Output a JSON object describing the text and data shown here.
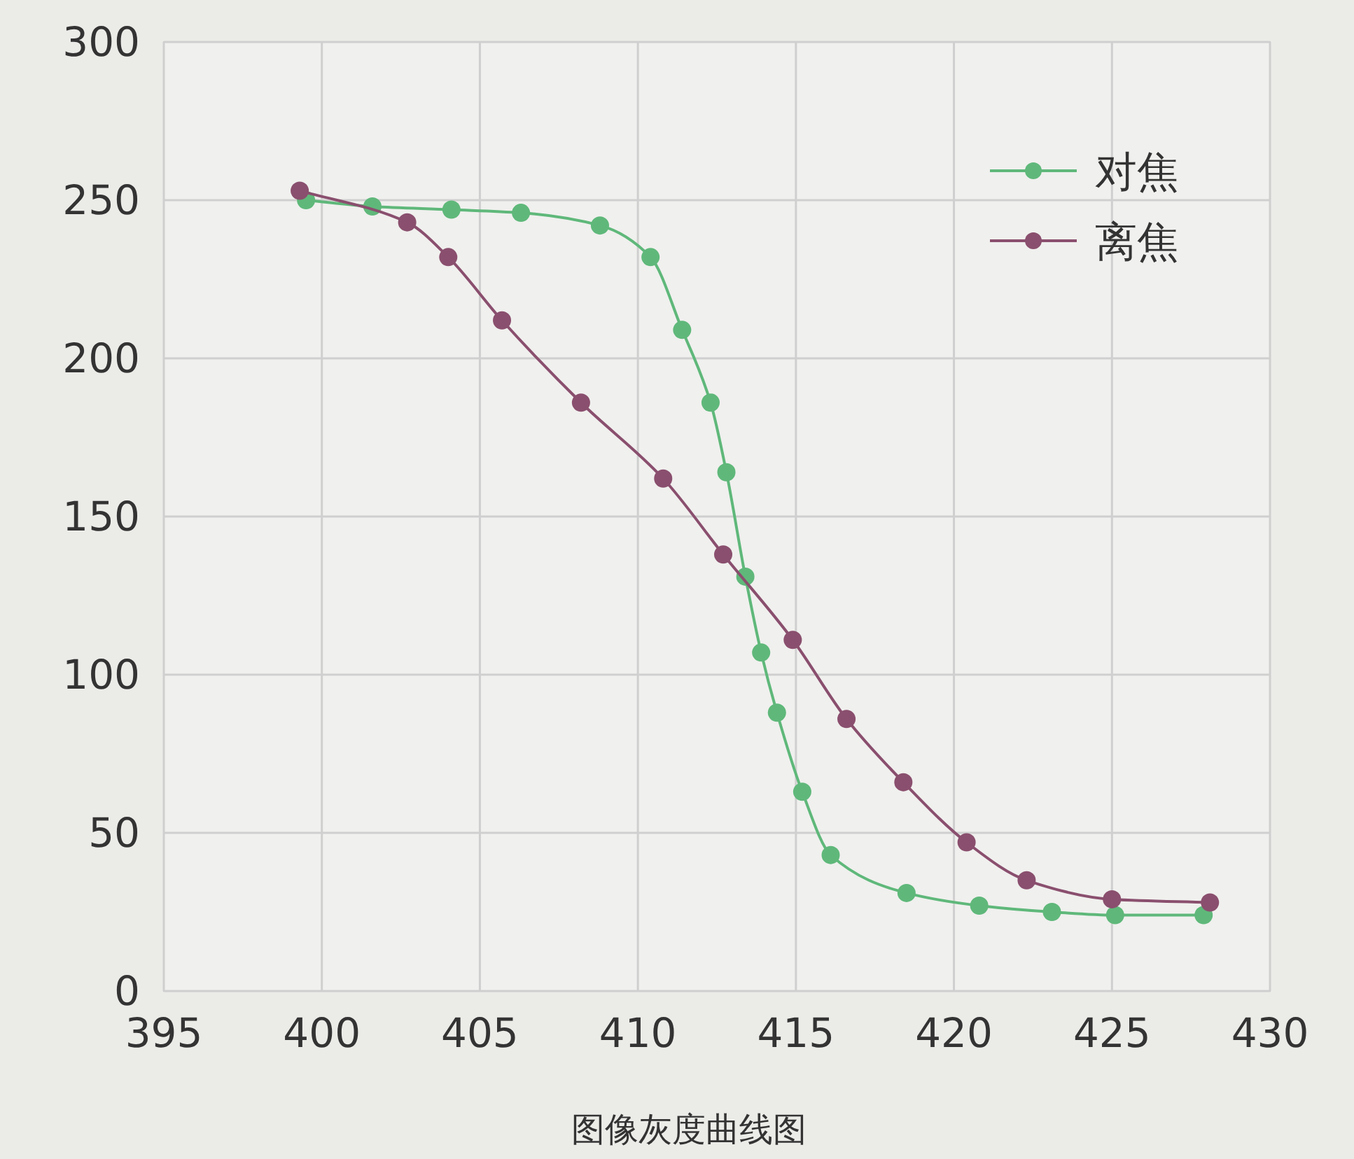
{
  "chart_data": {
    "type": "line",
    "annotations": [
      "图像灰度曲线图"
    ],
    "xlim": [
      395,
      430
    ],
    "xticks": [
      395,
      400,
      405,
      410,
      415,
      420,
      425,
      430
    ],
    "ylim": [
      0,
      300
    ],
    "yticks": [
      0,
      50,
      100,
      150,
      200,
      250,
      300
    ],
    "grid": true,
    "legend": "top right",
    "marker": "circle",
    "line_style": "solid",
    "series": [
      {
        "name": "对焦",
        "color": "#5fb87a",
        "x": [
          399.5,
          401.6,
          404.1,
          406.3,
          408.8,
          410.4,
          411.4,
          412.3,
          412.8,
          413.4,
          413.9,
          414.4,
          415.2,
          416.1,
          418.5,
          420.8,
          423.1,
          425.1,
          427.9
        ],
        "values": [
          250,
          248,
          247,
          246,
          242,
          232,
          209,
          186,
          164,
          131,
          107,
          88,
          63,
          43,
          31,
          27,
          25,
          24,
          24
        ]
      },
      {
        "name": "离焦",
        "color": "#8a4f6e",
        "x": [
          399.3,
          402.7,
          404.0,
          405.7,
          408.2,
          410.8,
          412.7,
          414.9,
          416.6,
          418.4,
          420.4,
          422.3,
          425.0,
          428.1
        ],
        "values": [
          253,
          243,
          232,
          212,
          186,
          162,
          138,
          111,
          86,
          66,
          47,
          35,
          29,
          28
        ]
      }
    ]
  }
}
